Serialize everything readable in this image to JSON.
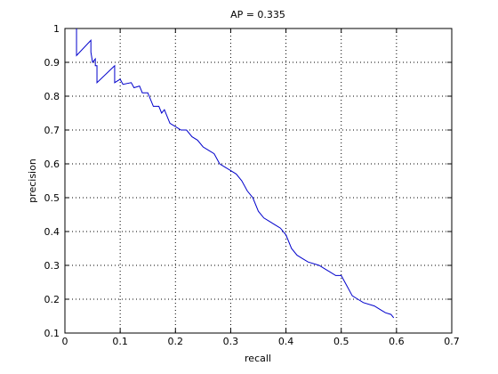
{
  "chart_data": {
    "type": "line",
    "title": "AP = 0.335",
    "x_label": "recall",
    "y_label": "precision",
    "x": [
      0.021,
      0.021,
      0.047,
      0.047,
      0.05,
      0.055,
      0.055,
      0.058,
      0.058,
      0.09,
      0.09,
      0.1,
      0.105,
      0.12,
      0.125,
      0.135,
      0.14,
      0.15,
      0.155,
      0.16,
      0.17,
      0.175,
      0.18,
      0.19,
      0.2,
      0.21,
      0.22,
      0.23,
      0.24,
      0.25,
      0.26,
      0.27,
      0.28,
      0.29,
      0.3,
      0.31,
      0.32,
      0.33,
      0.34,
      0.35,
      0.36,
      0.37,
      0.38,
      0.39,
      0.4,
      0.41,
      0.42,
      0.43,
      0.44,
      0.46,
      0.47,
      0.48,
      0.49,
      0.5,
      0.51,
      0.52,
      0.53,
      0.54,
      0.56,
      0.57,
      0.58,
      0.59,
      0.595
    ],
    "values": [
      1.0,
      0.92,
      0.965,
      0.93,
      0.9,
      0.91,
      0.89,
      0.89,
      0.84,
      0.89,
      0.84,
      0.85,
      0.835,
      0.84,
      0.825,
      0.83,
      0.81,
      0.81,
      0.79,
      0.77,
      0.77,
      0.75,
      0.76,
      0.72,
      0.71,
      0.7,
      0.7,
      0.68,
      0.67,
      0.65,
      0.64,
      0.63,
      0.6,
      0.59,
      0.58,
      0.57,
      0.55,
      0.52,
      0.5,
      0.46,
      0.44,
      0.43,
      0.42,
      0.41,
      0.39,
      0.35,
      0.33,
      0.32,
      0.31,
      0.3,
      0.29,
      0.28,
      0.27,
      0.27,
      0.24,
      0.21,
      0.2,
      0.19,
      0.18,
      0.17,
      0.16,
      0.155,
      0.145
    ],
    "color": "#0000cc",
    "xlim": [
      0,
      0.7
    ],
    "ylim": [
      0.1,
      1
    ],
    "xticks": [
      0,
      0.1,
      0.2,
      0.3,
      0.4,
      0.5,
      0.6,
      0.7
    ],
    "yticks": [
      0.1,
      0.2,
      0.3,
      0.4,
      0.5,
      0.6,
      0.7,
      0.8,
      0.9,
      1
    ],
    "grid": true
  }
}
